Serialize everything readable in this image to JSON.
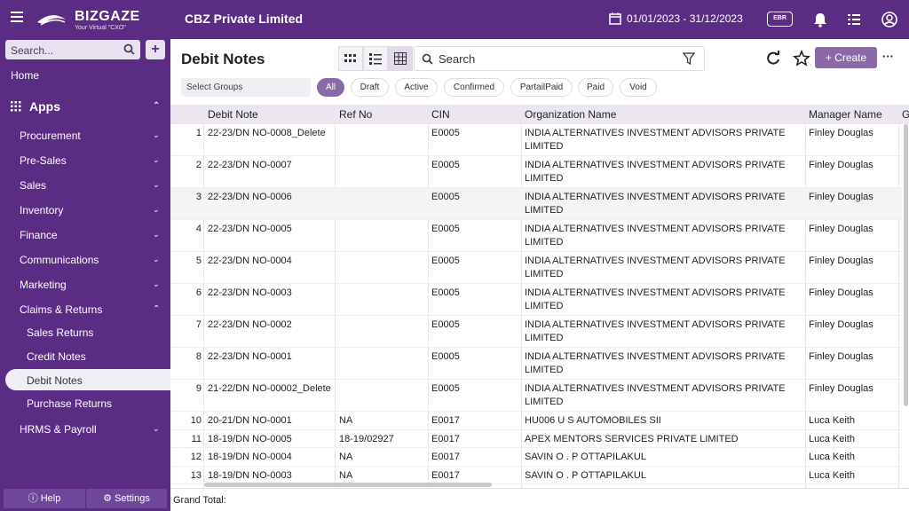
{
  "app": {
    "brand": "BIZGAZE",
    "tagline": "Your Virtual \"CXO\"",
    "company": "CBZ Private Limited",
    "date_range": "01/01/2023 - 31/12/2023",
    "ebr_label": "EBR"
  },
  "sidebar": {
    "search_placeholder": "Search...",
    "home": "Home",
    "apps": "Apps",
    "items": [
      "Procurement",
      "Pre-Sales",
      "Sales",
      "Inventory",
      "Finance",
      "Communications",
      "Marketing",
      "Claims & Returns"
    ],
    "sub_items": [
      "Sales Returns",
      "Credit Notes",
      "Debit Notes",
      "Purchase Returns"
    ],
    "last_item": "HRMS & Payroll",
    "help": "Help",
    "settings": "Settings"
  },
  "page": {
    "title": "Debit Notes",
    "search_placeholder": "Search",
    "create_label": "Create",
    "select_groups": "Select Groups"
  },
  "filters": [
    "All",
    "Draft",
    "Active",
    "Confirmed",
    "PartailPaid",
    "Paid",
    "Void"
  ],
  "columns": [
    "Debit Note",
    "Ref No",
    "CIN",
    "Organization Name",
    "Manager Name",
    "G"
  ],
  "rows": [
    {
      "n": "1",
      "note": "22-23/DN NO-0008_Delete",
      "ref": "",
      "cin": "E0005",
      "org1": "INDIA ALTERNATIVES INVESTMENT ADVISORS PRIVATE",
      "org2": "LIMITED",
      "mgr": "Finley Douglas"
    },
    {
      "n": "2",
      "note": "22-23/DN NO-0007",
      "ref": "",
      "cin": "E0005",
      "org1": "INDIA ALTERNATIVES INVESTMENT ADVISORS PRIVATE",
      "org2": "LIMITED",
      "mgr": "Finley Douglas"
    },
    {
      "n": "3",
      "note": "22-23/DN NO-0006",
      "ref": "",
      "cin": "E0005",
      "org1": "INDIA ALTERNATIVES INVESTMENT ADVISORS PRIVATE",
      "org2": "LIMITED",
      "mgr": "Finley Douglas"
    },
    {
      "n": "4",
      "note": "22-23/DN NO-0005",
      "ref": "",
      "cin": "E0005",
      "org1": "INDIA ALTERNATIVES INVESTMENT ADVISORS PRIVATE",
      "org2": "LIMITED",
      "mgr": "Finley Douglas"
    },
    {
      "n": "5",
      "note": "22-23/DN NO-0004",
      "ref": "",
      "cin": "E0005",
      "org1": "INDIA ALTERNATIVES INVESTMENT ADVISORS PRIVATE",
      "org2": "LIMITED",
      "mgr": "Finley Douglas"
    },
    {
      "n": "6",
      "note": "22-23/DN NO-0003",
      "ref": "",
      "cin": "E0005",
      "org1": "INDIA ALTERNATIVES INVESTMENT ADVISORS PRIVATE",
      "org2": "LIMITED",
      "mgr": "Finley Douglas"
    },
    {
      "n": "7",
      "note": "22-23/DN NO-0002",
      "ref": "",
      "cin": "E0005",
      "org1": "INDIA ALTERNATIVES INVESTMENT ADVISORS PRIVATE",
      "org2": "LIMITED",
      "mgr": "Finley Douglas"
    },
    {
      "n": "8",
      "note": "22-23/DN NO-0001",
      "ref": "",
      "cin": "E0005",
      "org1": "INDIA ALTERNATIVES INVESTMENT ADVISORS PRIVATE",
      "org2": "LIMITED",
      "mgr": "Finley Douglas"
    },
    {
      "n": "9",
      "note": "21-22/DN NO-00002_Delete",
      "ref": "",
      "cin": "E0005",
      "org1": "INDIA ALTERNATIVES INVESTMENT ADVISORS PRIVATE",
      "org2": "LIMITED",
      "mgr": "Finley Douglas"
    },
    {
      "n": "10",
      "note": "20-21/DN NO-0001",
      "ref": "NA",
      "cin": "E0017",
      "org1": "HU006 U S AUTOMOBILES SII",
      "org2": "",
      "mgr": "Luca Keith"
    },
    {
      "n": "11",
      "note": "18-19/DN NO-0005",
      "ref": "18-19/02927",
      "cin": "E0017",
      "org1": "APEX MENTORS SERVICES PRIVATE LIMITED",
      "org2": "",
      "mgr": "Luca Keith"
    },
    {
      "n": "12",
      "note": "18-19/DN NO-0004",
      "ref": "NA",
      "cin": "E0017",
      "org1": "SAVIN O . P OTTAPILAKUL",
      "org2": "",
      "mgr": "Luca Keith"
    },
    {
      "n": "13",
      "note": "18-19/DN NO-0003",
      "ref": "NA",
      "cin": "E0017",
      "org1": "SAVIN O . P OTTAPILAKUL",
      "org2": "",
      "mgr": "Luca Keith"
    }
  ],
  "grand_total_label": "Grand Total:",
  "colors": {
    "brand": "#5b2c83",
    "accent": "#8a6aa6"
  }
}
